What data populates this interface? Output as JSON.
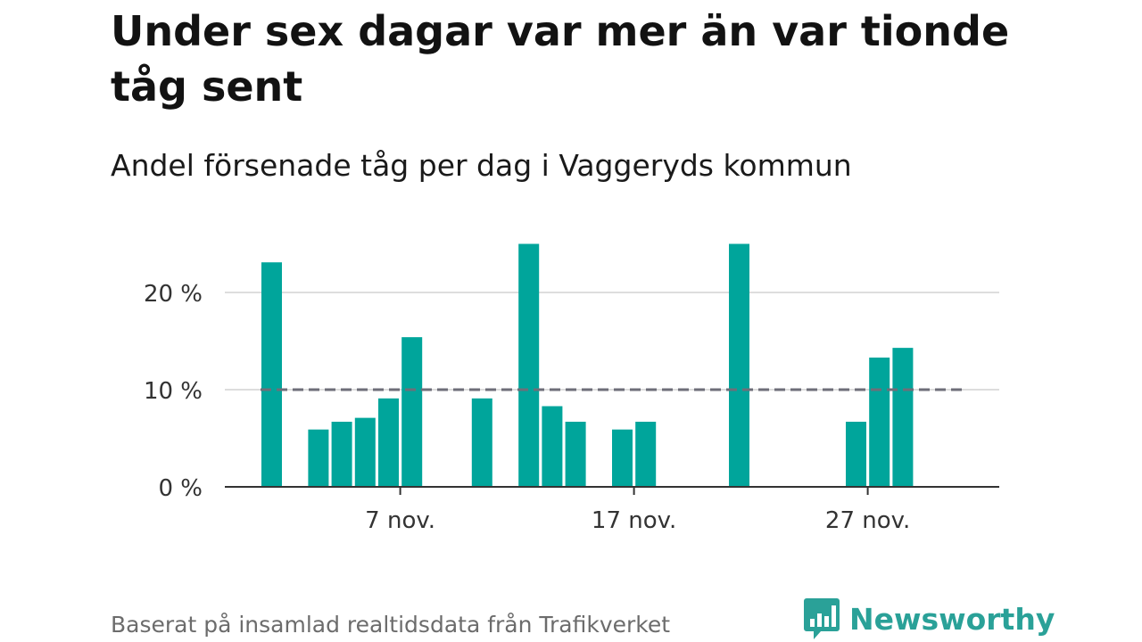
{
  "title": "Under sex dagar var mer än var tionde tåg sent",
  "subtitle": "Andel försenade tåg per dag i Vaggeryds kommun",
  "footer": "Baserat på insamlad realtidsdata från Trafikverket",
  "brand": "Newsworthy",
  "colors": {
    "bar": "#00a59b",
    "reference": "#6e6e78",
    "grid": "#dddddd",
    "axis": "#333333",
    "brand": "#2aa198"
  },
  "chart_data": {
    "type": "bar",
    "x_unit": "day of November",
    "x": [
      1,
      2,
      3,
      4,
      5,
      6,
      7,
      8,
      9,
      10,
      11,
      12,
      13,
      14,
      15,
      16,
      17,
      18,
      19,
      20,
      21,
      22,
      23,
      24,
      25,
      26,
      27,
      28,
      29,
      30
    ],
    "values": [
      23.1,
      null,
      5.9,
      6.7,
      7.1,
      9.1,
      15.4,
      null,
      null,
      9.1,
      null,
      25,
      8.3,
      6.7,
      null,
      5.9,
      6.7,
      null,
      null,
      null,
      25,
      null,
      null,
      null,
      null,
      6.7,
      13.3,
      14.3,
      null,
      null
    ],
    "reference_line": 10,
    "yticks": [
      "0 %",
      "10 %",
      "20 %"
    ],
    "ytick_values": [
      0,
      10,
      20
    ],
    "xticks": [
      "7 nov.",
      "17 nov.",
      "27 nov."
    ],
    "xtick_days": [
      7,
      17,
      27
    ],
    "ylim": [
      0,
      25
    ],
    "grid": true
  }
}
